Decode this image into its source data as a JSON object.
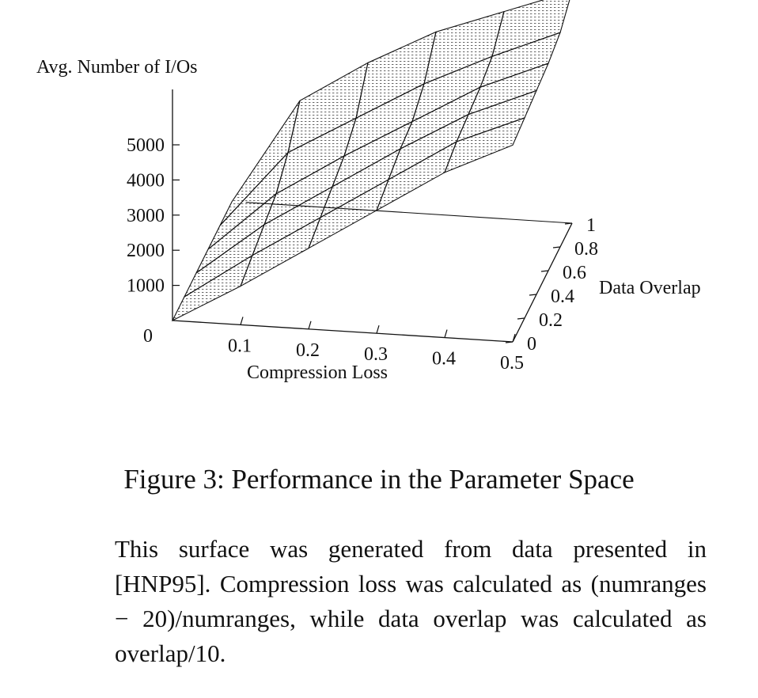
{
  "chart_data": {
    "type": "surface",
    "zlabel": "Avg. Number of I/Os",
    "xlabel": "Compression Loss",
    "ylabel": "Data Overlap",
    "xlim": [
      0,
      0.5
    ],
    "ylim": [
      0,
      1
    ],
    "zlim": [
      0,
      5000
    ],
    "x_ticks": [
      "0.1",
      "0.2",
      "0.3",
      "0.4",
      "0.5"
    ],
    "y_ticks": [
      "0",
      "0.2",
      "0.4",
      "0.6",
      "0.8",
      "1"
    ],
    "z_ticks": [
      "0",
      "1000",
      "2000",
      "3000",
      "4000",
      "5000"
    ],
    "x": [
      0,
      0.1,
      0.2,
      0.3,
      0.4,
      0.5
    ],
    "y": [
      0,
      0.2,
      0.4,
      0.6,
      0.8,
      1.0
    ],
    "z": [
      [
        0,
        1100,
        2300,
        3500,
        4700,
        5600
      ],
      [
        0,
        1300,
        2500,
        3700,
        4900,
        5700
      ],
      [
        0,
        1500,
        2700,
        3900,
        5000,
        5800
      ],
      [
        0,
        1700,
        2900,
        4000,
        5100,
        5900
      ],
      [
        0,
        2200,
        3300,
        4400,
        5300,
        6100
      ],
      [
        0,
        3000,
        4200,
        5200,
        5900,
        6600
      ]
    ],
    "grid": false
  },
  "caption": {
    "title": "Figure 3: Performance in the Parameter Space",
    "body": "This surface was generated from data presented in [HNP95]. Compression loss was calculated as (numranges − 20)/numranges, while data overlap was calculated as overlap/10."
  }
}
